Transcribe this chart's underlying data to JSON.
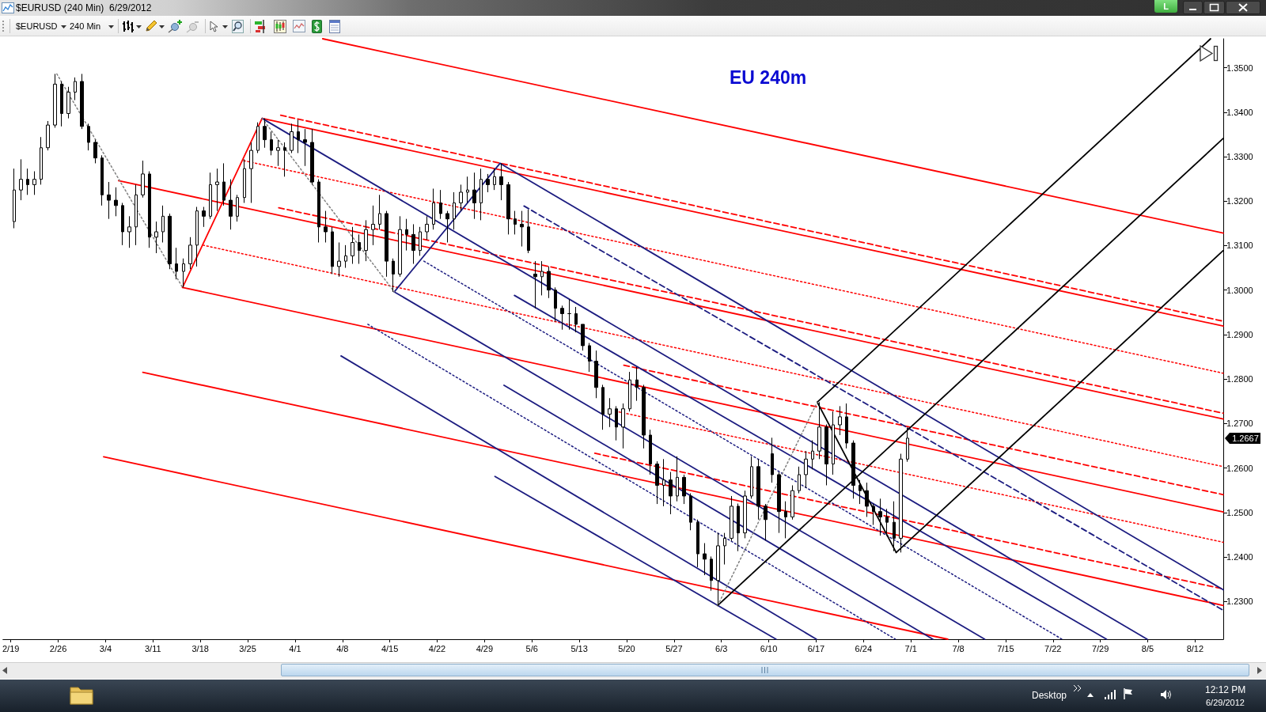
{
  "chart_data": {
    "type": "candlestick",
    "title": "EU 240m",
    "annotations": [
      "$EURUSD (240 Min)  6/29/2012",
      "$EURUSD",
      "240 Min",
      "L",
      "Desktop",
      "12:12 PM",
      "6/29/2012",
      "1.2667"
    ],
    "color": "#000000",
    "x": [
      "2012-02-19T12:00",
      "2012-02-20T12:00",
      "2012-02-21T12:00",
      "2012-02-22T12:00",
      "2012-02-23T12:00",
      "2012-02-24T12:00",
      "2012-02-25T12:00",
      "2012-02-26T12:00",
      "2012-02-27T12:00",
      "2012-02-28T12:00",
      "2012-02-29T12:00",
      "2012-03-01T12:00",
      "2012-03-02T12:00",
      "2012-03-03T12:00",
      "2012-03-04T12:00",
      "2012-03-05T12:00",
      "2012-03-06T12:00",
      "2012-03-07T12:00",
      "2012-03-08T12:00",
      "2012-03-09T12:00",
      "2012-03-10T12:00",
      "2012-03-11T12:00",
      "2012-03-12T12:00",
      "2012-03-13T12:00",
      "2012-03-14T12:00",
      "2012-03-15T12:00",
      "2012-03-16T12:00",
      "2012-03-17T12:00",
      "2012-03-18T12:00",
      "2012-03-19T12:00",
      "2012-03-20T12:00",
      "2012-03-21T12:00",
      "2012-03-22T12:00",
      "2012-03-23T12:00",
      "2012-03-24T12:00",
      "2012-03-25T12:00",
      "2012-03-26T12:00",
      "2012-03-27T12:00",
      "2012-03-28T12:00",
      "2012-03-29T12:00",
      "2012-03-30T12:00",
      "2012-03-31T12:00",
      "2012-04-01T12:00",
      "2012-04-02T12:00",
      "2012-04-03T12:00",
      "2012-04-04T12:00",
      "2012-04-05T12:00",
      "2012-04-06T12:00",
      "2012-04-07T12:00",
      "2012-04-08T12:00",
      "2012-04-09T12:00",
      "2012-04-10T12:00",
      "2012-04-11T12:00",
      "2012-04-12T12:00",
      "2012-04-13T12:00",
      "2012-04-14T12:00",
      "2012-04-15T12:00",
      "2012-04-16T12:00",
      "2012-04-17T12:00",
      "2012-04-18T12:00",
      "2012-04-19T12:00",
      "2012-04-20T12:00",
      "2012-04-21T12:00",
      "2012-04-22T12:00",
      "2012-04-23T12:00",
      "2012-04-24T12:00",
      "2012-04-25T12:00",
      "2012-04-26T12:00",
      "2012-04-27T12:00",
      "2012-04-28T12:00",
      "2012-04-29T12:00",
      "2012-04-30T12:00",
      "2012-05-01T12:00",
      "2012-05-02T12:00",
      "2012-05-03T12:00",
      "2012-05-04T12:00",
      "2012-05-05T12:00",
      "2012-05-06T12:00",
      "2012-05-07T12:00",
      "2012-05-08T12:00",
      "2012-05-09T12:00",
      "2012-05-10T12:00",
      "2012-05-11T12:00",
      "2012-05-12T12:00",
      "2012-05-13T12:00",
      "2012-05-14T12:00",
      "2012-05-15T12:00",
      "2012-05-16T12:00",
      "2012-05-17T12:00",
      "2012-05-18T12:00",
      "2012-05-19T12:00",
      "2012-05-20T12:00",
      "2012-05-21T12:00",
      "2012-05-22T12:00",
      "2012-05-23T12:00",
      "2012-05-24T12:00",
      "2012-05-25T12:00",
      "2012-05-26T12:00",
      "2012-05-27T12:00",
      "2012-05-28T12:00",
      "2012-05-29T12:00",
      "2012-05-30T12:00",
      "2012-05-31T12:00",
      "2012-06-01T12:00",
      "2012-06-02T12:00",
      "2012-06-03T12:00",
      "2012-06-04T12:00",
      "2012-06-05T12:00",
      "2012-06-06T12:00",
      "2012-06-07T12:00",
      "2012-06-08T12:00",
      "2012-06-09T12:00",
      "2012-06-10T12:00",
      "2012-06-11T12:00",
      "2012-06-12T12:00",
      "2012-06-13T12:00",
      "2012-06-14T12:00",
      "2012-06-15T12:00",
      "2012-06-16T12:00",
      "2012-06-17T12:00",
      "2012-06-18T12:00",
      "2012-06-19T12:00",
      "2012-06-20T12:00",
      "2012-06-21T12:00",
      "2012-06-22T12:00",
      "2012-06-23T12:00",
      "2012-06-24T12:00",
      "2012-06-25T12:00",
      "2012-06-26T12:00",
      "2012-06-27T12:00",
      "2012-06-28T12:00",
      "2012-06-29T12:00",
      "2012-06-30T12:00"
    ],
    "ohlc": [
      [
        1.3154,
        1.3273,
        1.3139,
        1.3225
      ],
      [
        1.3225,
        1.3294,
        1.3202,
        1.3249
      ],
      [
        1.3249,
        1.3273,
        1.3214,
        1.3237
      ],
      [
        1.3237,
        1.3267,
        1.3214,
        1.3249
      ],
      [
        1.3249,
        1.3344,
        1.3237,
        1.332
      ],
      [
        1.332,
        1.338,
        1.3314,
        1.3371
      ],
      [
        1.3371,
        1.3486,
        1.3365,
        1.3463
      ],
      [
        1.3463,
        1.3469,
        1.3368,
        1.3397
      ],
      [
        1.3397,
        1.3457,
        1.3386,
        1.3445
      ],
      [
        1.3445,
        1.3478,
        1.3427,
        1.3469
      ],
      [
        1.3469,
        1.3486,
        1.3362,
        1.3368
      ],
      [
        1.3368,
        1.3374,
        1.3314,
        1.3332
      ],
      [
        1.3332,
        1.3338,
        1.3285,
        1.3297
      ],
      [
        1.3297,
        1.3303,
        1.319,
        1.3214
      ],
      [
        1.3214,
        1.3243,
        1.316,
        1.3202
      ],
      [
        1.3202,
        1.3231,
        1.3166,
        1.319
      ],
      [
        1.319,
        1.3196,
        1.3101,
        1.3131
      ],
      [
        1.3131,
        1.3166,
        1.3095,
        1.3142
      ],
      [
        1.3142,
        1.3237,
        1.3101,
        1.3214
      ],
      [
        1.3214,
        1.3291,
        1.3208,
        1.3261
      ],
      [
        1.3261,
        1.3267,
        1.3095,
        1.3119
      ],
      [
        1.3119,
        1.3154,
        1.3083,
        1.3131
      ],
      [
        1.3131,
        1.319,
        1.3107,
        1.3166
      ],
      [
        1.3166,
        1.3172,
        1.3047,
        1.3059
      ],
      [
        1.3059,
        1.3095,
        1.3024,
        1.3042
      ],
      [
        1.3042,
        1.3071,
        1.3006,
        1.3059
      ],
      [
        1.3059,
        1.3119,
        1.3047,
        1.3101
      ],
      [
        1.3101,
        1.3187,
        1.3053,
        1.3178
      ],
      [
        1.3178,
        1.3187,
        1.3142,
        1.3166
      ],
      [
        1.3166,
        1.3264,
        1.316,
        1.3237
      ],
      [
        1.3237,
        1.3273,
        1.3178,
        1.3243
      ],
      [
        1.3243,
        1.3285,
        1.319,
        1.3202
      ],
      [
        1.3202,
        1.3249,
        1.3136,
        1.3166
      ],
      [
        1.3166,
        1.3214,
        1.3154,
        1.3208
      ],
      [
        1.3208,
        1.3294,
        1.3196,
        1.3273
      ],
      [
        1.3273,
        1.3332,
        1.3196,
        1.3314
      ],
      [
        1.3314,
        1.3377,
        1.3308,
        1.3368
      ],
      [
        1.3368,
        1.3386,
        1.332,
        1.3338
      ],
      [
        1.3338,
        1.3356,
        1.3303,
        1.3314
      ],
      [
        1.3314,
        1.3338,
        1.3279,
        1.332
      ],
      [
        1.332,
        1.3332,
        1.3255,
        1.3314
      ],
      [
        1.3314,
        1.3374,
        1.3308,
        1.3356
      ],
      [
        1.3356,
        1.3383,
        1.3308,
        1.3338
      ],
      [
        1.3338,
        1.3362,
        1.3279,
        1.3332
      ],
      [
        1.3332,
        1.3362,
        1.3237,
        1.3243
      ],
      [
        1.3243,
        1.3249,
        1.3107,
        1.3142
      ],
      [
        1.3142,
        1.3178,
        1.3107,
        1.3131
      ],
      [
        1.3131,
        1.3142,
        1.3036,
        1.3053
      ],
      [
        1.3053,
        1.3107,
        1.303,
        1.3065
      ],
      [
        1.3065,
        1.3101,
        1.305,
        1.3077
      ],
      [
        1.3077,
        1.3142,
        1.3059,
        1.3107
      ],
      [
        1.3107,
        1.3125,
        1.3059,
        1.3089
      ],
      [
        1.3089,
        1.3157,
        1.3065,
        1.3136
      ],
      [
        1.3136,
        1.319,
        1.3101,
        1.3148
      ],
      [
        1.3148,
        1.3214,
        1.3136,
        1.3172
      ],
      [
        1.3172,
        1.3178,
        1.303,
        1.3065
      ],
      [
        1.3065,
        1.3071,
        1.2996,
        1.3036
      ],
      [
        1.3036,
        1.3166,
        1.303,
        1.3136
      ],
      [
        1.3136,
        1.316,
        1.3089,
        1.3125
      ],
      [
        1.3125,
        1.3148,
        1.3059,
        1.3089
      ],
      [
        1.3089,
        1.3142,
        1.3077,
        1.3131
      ],
      [
        1.3131,
        1.3166,
        1.3113,
        1.3148
      ],
      [
        1.3148,
        1.3228,
        1.3136,
        1.3196
      ],
      [
        1.3196,
        1.3225,
        1.316,
        1.3172
      ],
      [
        1.3172,
        1.3178,
        1.3107,
        1.316
      ],
      [
        1.316,
        1.322,
        1.3136,
        1.3196
      ],
      [
        1.3196,
        1.3237,
        1.3178,
        1.322
      ],
      [
        1.322,
        1.3255,
        1.3196,
        1.3225
      ],
      [
        1.3225,
        1.3264,
        1.316,
        1.3196
      ],
      [
        1.3196,
        1.3273,
        1.3157,
        1.3249
      ],
      [
        1.3249,
        1.3261,
        1.322,
        1.3237
      ],
      [
        1.3237,
        1.3273,
        1.3225,
        1.3255
      ],
      [
        1.3255,
        1.3285,
        1.3202,
        1.3237
      ],
      [
        1.3237,
        1.3243,
        1.3125,
        1.316
      ],
      [
        1.316,
        1.3178,
        1.3125,
        1.3148
      ],
      [
        1.3148,
        1.3178,
        1.3098,
        1.3142
      ],
      [
        1.3142,
        1.3181,
        1.3083,
        1.3089
      ],
      [
        1.3036,
        1.3065,
        1.2959,
        1.303
      ],
      [
        1.303,
        1.3065,
        1.2988,
        1.3042
      ],
      [
        1.3042,
        1.3053,
        1.2982,
        1.3
      ],
      [
        1.3,
        1.3006,
        1.2929,
        1.2959
      ],
      [
        1.2959,
        1.2965,
        1.2911,
        1.2947
      ],
      [
        1.2947,
        1.2979,
        1.2911,
        1.2947
      ],
      [
        1.2947,
        1.2962,
        1.2905,
        1.2923
      ],
      [
        1.2923,
        1.2923,
        1.2864,
        1.2875
      ],
      [
        1.2875,
        1.2881,
        1.2816,
        1.284
      ],
      [
        1.284,
        1.2864,
        1.2757,
        1.2781
      ],
      [
        1.2781,
        1.2787,
        1.2686,
        1.2721
      ],
      [
        1.2721,
        1.2757,
        1.2692,
        1.2733
      ],
      [
        1.2733,
        1.2739,
        1.2662,
        1.2692
      ],
      [
        1.2692,
        1.2745,
        1.2644,
        1.2733
      ],
      [
        1.2733,
        1.2816,
        1.2727,
        1.2798
      ],
      [
        1.2798,
        1.2827,
        1.2751,
        1.2781
      ],
      [
        1.2781,
        1.2787,
        1.2644,
        1.2674
      ],
      [
        1.2674,
        1.2686,
        1.2585,
        1.2609
      ],
      [
        1.2609,
        1.2615,
        1.2519,
        1.2561
      ],
      [
        1.2561,
        1.262,
        1.2514,
        1.2573
      ],
      [
        1.2573,
        1.2591,
        1.2496,
        1.2537
      ],
      [
        1.2537,
        1.2626,
        1.2525,
        1.2579
      ],
      [
        1.2579,
        1.2585,
        1.2519,
        1.2537
      ],
      [
        1.2537,
        1.2543,
        1.246,
        1.2478
      ],
      [
        1.2478,
        1.2484,
        1.2377,
        1.2407
      ],
      [
        1.2407,
        1.2431,
        1.2359,
        1.2395
      ],
      [
        1.2395,
        1.2401,
        1.2324,
        1.2347
      ],
      [
        1.2347,
        1.2454,
        1.2291,
        1.2425
      ],
      [
        1.2425,
        1.2454,
        1.2383,
        1.2442
      ],
      [
        1.2442,
        1.2537,
        1.2436,
        1.2514
      ],
      [
        1.2514,
        1.252,
        1.2413,
        1.2454
      ],
      [
        1.2454,
        1.2549,
        1.2442,
        1.2537
      ],
      [
        1.2537,
        1.2626,
        1.2531,
        1.2603
      ],
      [
        1.2603,
        1.262,
        1.2484,
        1.2514
      ],
      [
        1.2514,
        1.2519,
        1.2437,
        1.2484
      ],
      [
        1.2632,
        1.2668,
        1.2567,
        1.2585
      ],
      [
        1.2585,
        1.2591,
        1.2454,
        1.2502
      ],
      [
        1.2502,
        1.2525,
        1.2442,
        1.249
      ],
      [
        1.249,
        1.2561,
        1.2484,
        1.2549
      ],
      [
        1.2549,
        1.2603,
        1.2543,
        1.2585
      ],
      [
        1.2585,
        1.2638,
        1.2555,
        1.262
      ],
      [
        1.262,
        1.2662,
        1.2597,
        1.2638
      ],
      [
        1.2638,
        1.2748,
        1.262,
        1.2692
      ],
      [
        1.2692,
        1.2698,
        1.2561,
        1.2609
      ],
      [
        1.2609,
        1.2727,
        1.2585,
        1.2697
      ],
      [
        1.2697,
        1.2739,
        1.2674,
        1.2715
      ],
      [
        1.2715,
        1.2745,
        1.2644,
        1.2656
      ],
      [
        1.2656,
        1.2662,
        1.2531,
        1.2561
      ],
      [
        1.2561,
        1.2573,
        1.2519,
        1.2549
      ],
      [
        1.2549,
        1.2567,
        1.249,
        1.2514
      ],
      [
        1.2514,
        1.252,
        1.2472,
        1.2502
      ],
      [
        1.2502,
        1.2531,
        1.2448,
        1.249
      ],
      [
        1.249,
        1.2508,
        1.2454,
        1.2478
      ],
      [
        1.2478,
        1.2525,
        1.2413,
        1.2442
      ],
      [
        1.2442,
        1.2632,
        1.241,
        1.262
      ],
      [
        1.262,
        1.2691,
        1.2614,
        1.2667
      ]
    ],
    "series": [
      {
        "type": "line",
        "color": "#ff0000",
        "line_style": "solid",
        "x": [
          "2012-04-05T02:00",
          "2012-08-16T04:00"
        ],
        "values": [
          1.3565,
          1.3128
        ]
      },
      {
        "type": "line",
        "color": "#ff0000",
        "line_style": "solid",
        "x": [
          "2012-03-27T03:00",
          "2012-08-16T04:00"
        ],
        "values": [
          1.3386,
          1.2919
        ]
      },
      {
        "type": "line",
        "color": "#ff0000",
        "line_style": "dashed",
        "x": [
          "2012-03-29T21:00",
          "2012-08-16T04:00"
        ],
        "values": [
          1.3393,
          1.293
        ]
      },
      {
        "type": "line",
        "color": "#ff0000",
        "line_style": "dotted",
        "x": [
          "2012-03-24T10:00",
          "2012-08-16T04:00"
        ],
        "values": [
          1.3291,
          1.2813
        ]
      },
      {
        "type": "line",
        "color": "#ff0000",
        "line_style": "dashed",
        "x": [
          "2012-03-29T14:00",
          "2012-08-16T04:00"
        ],
        "values": [
          1.3185,
          1.2723
        ]
      },
      {
        "type": "line",
        "color": "#ff0000",
        "line_style": "solid",
        "x": [
          "2012-03-05T22:00",
          "2012-08-16T04:00"
        ],
        "values": [
          1.3246,
          1.271
        ]
      },
      {
        "type": "line",
        "color": "#ff0000",
        "line_style": "dotted",
        "x": [
          "2012-03-18T09:00",
          "2012-08-16T04:00"
        ],
        "values": [
          1.3101,
          1.2603
        ]
      },
      {
        "type": "line",
        "color": "#ff0000",
        "line_style": "dashed",
        "x": [
          "2012-05-19T14:00",
          "2012-08-16T04:00"
        ],
        "values": [
          1.2831,
          1.254
        ]
      },
      {
        "type": "line",
        "color": "#ff0000",
        "line_style": "solid",
        "x": [
          "2012-03-15T09:00",
          "2012-08-16T04:00"
        ],
        "values": [
          1.3006,
          1.2501
        ]
      },
      {
        "type": "line",
        "color": "#ff0000",
        "line_style": "dotted",
        "x": [
          "2012-05-18T21:00",
          "2012-08-16T04:00"
        ],
        "values": [
          1.2726,
          1.2433
        ]
      },
      {
        "type": "line",
        "color": "#ff0000",
        "line_style": "dashed",
        "x": [
          "2012-05-15T07:00",
          "2012-08-16T04:00"
        ],
        "values": [
          1.2633,
          1.2328
        ]
      },
      {
        "type": "line",
        "color": "#ff0000",
        "line_style": "solid",
        "x": [
          "2012-03-09T12:00",
          "2012-08-16T04:00"
        ],
        "values": [
          1.2815,
          1.2291
        ]
      },
      {
        "type": "line",
        "color": "#ff0000",
        "line_style": "solid",
        "x": [
          "2012-03-03T17:00",
          "2012-07-06T11:00"
        ],
        "values": [
          1.2625,
          1.2215
        ]
      },
      {
        "type": "line",
        "color": "#ff0000",
        "line_style": "solid",
        "x": [
          "2012-03-15T09:00",
          "2012-03-27T03:00"
        ],
        "values": [
          1.3006,
          1.3386
        ]
      },
      {
        "type": "line",
        "color": "#1c1c80",
        "line_style": "solid",
        "x": [
          "2012-04-15T16:00",
          "2012-05-01T07:00"
        ],
        "values": [
          1.2996,
          1.3285
        ]
      },
      {
        "type": "line",
        "color": "#1c1c80",
        "line_style": "solid",
        "x": [
          "2012-05-01T07:00",
          "2012-08-16T04:00"
        ],
        "values": [
          1.3285,
          1.2326
        ]
      },
      {
        "type": "line",
        "color": "#1c1c80",
        "line_style": "solid",
        "x": [
          "2012-03-27T03:00",
          "2012-08-04T22:00"
        ],
        "values": [
          1.3386,
          1.2215
        ]
      },
      {
        "type": "line",
        "color": "#1c1c80",
        "line_style": "solid",
        "x": [
          "2012-04-15T16:00",
          "2012-07-11T22:00"
        ],
        "values": [
          1.2996,
          1.2215
        ]
      },
      {
        "type": "line",
        "color": "#1c1c80",
        "line_style": "solid",
        "x": [
          "2012-04-07T19:00",
          "2012-06-17T01:00"
        ],
        "values": [
          1.2852,
          1.2215
        ]
      },
      {
        "type": "line",
        "color": "#1c1c80",
        "line_style": "dotted",
        "x": [
          "2012-04-11T18:00",
          "2012-06-28T17:00"
        ],
        "values": [
          1.2923,
          1.2215
        ]
      },
      {
        "type": "line",
        "color": "#1c1c80",
        "line_style": "dotted",
        "x": [
          "2012-04-20T01:00",
          "2012-07-23T08:00"
        ],
        "values": [
          1.3065,
          1.2215
        ]
      },
      {
        "type": "line",
        "color": "#1c1c80",
        "line_style": "dashed",
        "x": [
          "2012-05-04T20:00",
          "2012-08-16T04:00"
        ],
        "values": [
          1.3189,
          1.228
        ]
      },
      {
        "type": "line",
        "color": "#1c1c80",
        "line_style": "solid",
        "x": [
          "2012-05-03T10:00",
          "2012-07-29T22:00"
        ],
        "values": [
          1.2988,
          1.2215
        ]
      },
      {
        "type": "line",
        "color": "#1c1c80",
        "line_style": "solid",
        "x": [
          "2012-05-01T21:00",
          "2012-07-04T06:00"
        ],
        "values": [
          1.2786,
          1.2215
        ]
      },
      {
        "type": "line",
        "color": "#1c1c80",
        "line_style": "solid",
        "x": [
          "2012-04-30T13:00",
          "2012-06-11T02:00"
        ],
        "values": [
          1.2581,
          1.2215
        ]
      },
      {
        "type": "line",
        "color": "#000000",
        "line_style": "solid",
        "x": [
          "2012-06-02T11:00",
          "2012-08-16T04:00"
        ],
        "values": [
          1.2291,
          1.3341
        ]
      },
      {
        "type": "line",
        "color": "#000000",
        "line_style": "solid",
        "x": [
          "2012-06-17T04:00",
          "2012-08-14T07:00"
        ],
        "values": [
          1.2748,
          1.3565
        ]
      },
      {
        "type": "line",
        "color": "#000000",
        "line_style": "solid",
        "x": [
          "2012-06-28T20:00",
          "2012-08-16T04:00"
        ],
        "values": [
          1.241,
          1.3089
        ]
      },
      {
        "type": "line",
        "color": "#000000",
        "line_style": "solid",
        "x": [
          "2012-06-17T04:00",
          "2012-06-28T20:00"
        ],
        "values": [
          1.2748,
          1.241
        ]
      },
      {
        "type": "line",
        "color": "#808080",
        "line_style": "dotted",
        "x": [
          "2012-02-25T19:00",
          "2012-03-15T09:00"
        ],
        "values": [
          1.3486,
          1.3006
        ]
      },
      {
        "type": "line",
        "color": "#808080",
        "line_style": "dotted",
        "x": [
          "2012-03-27T03:00",
          "2012-04-15T16:00"
        ],
        "values": [
          1.3386,
          1.2996
        ]
      },
      {
        "type": "line",
        "color": "#808080",
        "line_style": "dotted",
        "x": [
          "2012-06-02T11:00",
          "2012-06-17T04:00"
        ],
        "values": [
          1.2291,
          1.2748
        ]
      }
    ],
    "xlim": [
      "2012-02-17T20:00",
      "2012-08-16T04:00"
    ],
    "ylim": [
      1.2215,
      1.3565
    ],
    "xticks": [
      {
        "value": "2012-02-19",
        "label": "2/19"
      },
      {
        "value": "2012-02-26",
        "label": "2/26"
      },
      {
        "value": "2012-03-04",
        "label": "3/4"
      },
      {
        "value": "2012-03-11",
        "label": "3/11"
      },
      {
        "value": "2012-03-18",
        "label": "3/18"
      },
      {
        "value": "2012-03-25",
        "label": "3/25"
      },
      {
        "value": "2012-04-01",
        "label": "4/1"
      },
      {
        "value": "2012-04-08",
        "label": "4/8"
      },
      {
        "value": "2012-04-15",
        "label": "4/15"
      },
      {
        "value": "2012-04-22",
        "label": "4/22"
      },
      {
        "value": "2012-04-29",
        "label": "4/29"
      },
      {
        "value": "2012-05-06",
        "label": "5/6"
      },
      {
        "value": "2012-05-13",
        "label": "5/13"
      },
      {
        "value": "2012-05-20",
        "label": "5/20"
      },
      {
        "value": "2012-05-27",
        "label": "5/27"
      },
      {
        "value": "2012-06-03",
        "label": "6/3"
      },
      {
        "value": "2012-06-10",
        "label": "6/10"
      },
      {
        "value": "2012-06-17",
        "label": "6/17"
      },
      {
        "value": "2012-06-24",
        "label": "6/24"
      },
      {
        "value": "2012-07-01",
        "label": "7/1"
      },
      {
        "value": "2012-07-08",
        "label": "7/8"
      },
      {
        "value": "2012-07-15",
        "label": "7/15"
      },
      {
        "value": "2012-07-22",
        "label": "7/22"
      },
      {
        "value": "2012-07-29",
        "label": "7/29"
      },
      {
        "value": "2012-08-05",
        "label": "8/5"
      },
      {
        "value": "2012-08-12",
        "label": "8/12"
      }
    ],
    "yticks": [
      {
        "value": 1.23,
        "label": "1.2300"
      },
      {
        "value": 1.24,
        "label": "1.2400"
      },
      {
        "value": 1.25,
        "label": "1.2500"
      },
      {
        "value": 1.26,
        "label": "1.2600"
      },
      {
        "value": 1.27,
        "label": "1.2700"
      },
      {
        "value": 1.28,
        "label": "1.2800"
      },
      {
        "value": 1.29,
        "label": "1.2900"
      },
      {
        "value": 1.3,
        "label": "1.3000"
      },
      {
        "value": 1.31,
        "label": "1.3100"
      },
      {
        "value": 1.32,
        "label": "1.3200"
      },
      {
        "value": 1.33,
        "label": "1.3300"
      },
      {
        "value": 1.34,
        "label": "1.3400"
      },
      {
        "value": 1.35,
        "label": "1.3500"
      }
    ]
  }
}
